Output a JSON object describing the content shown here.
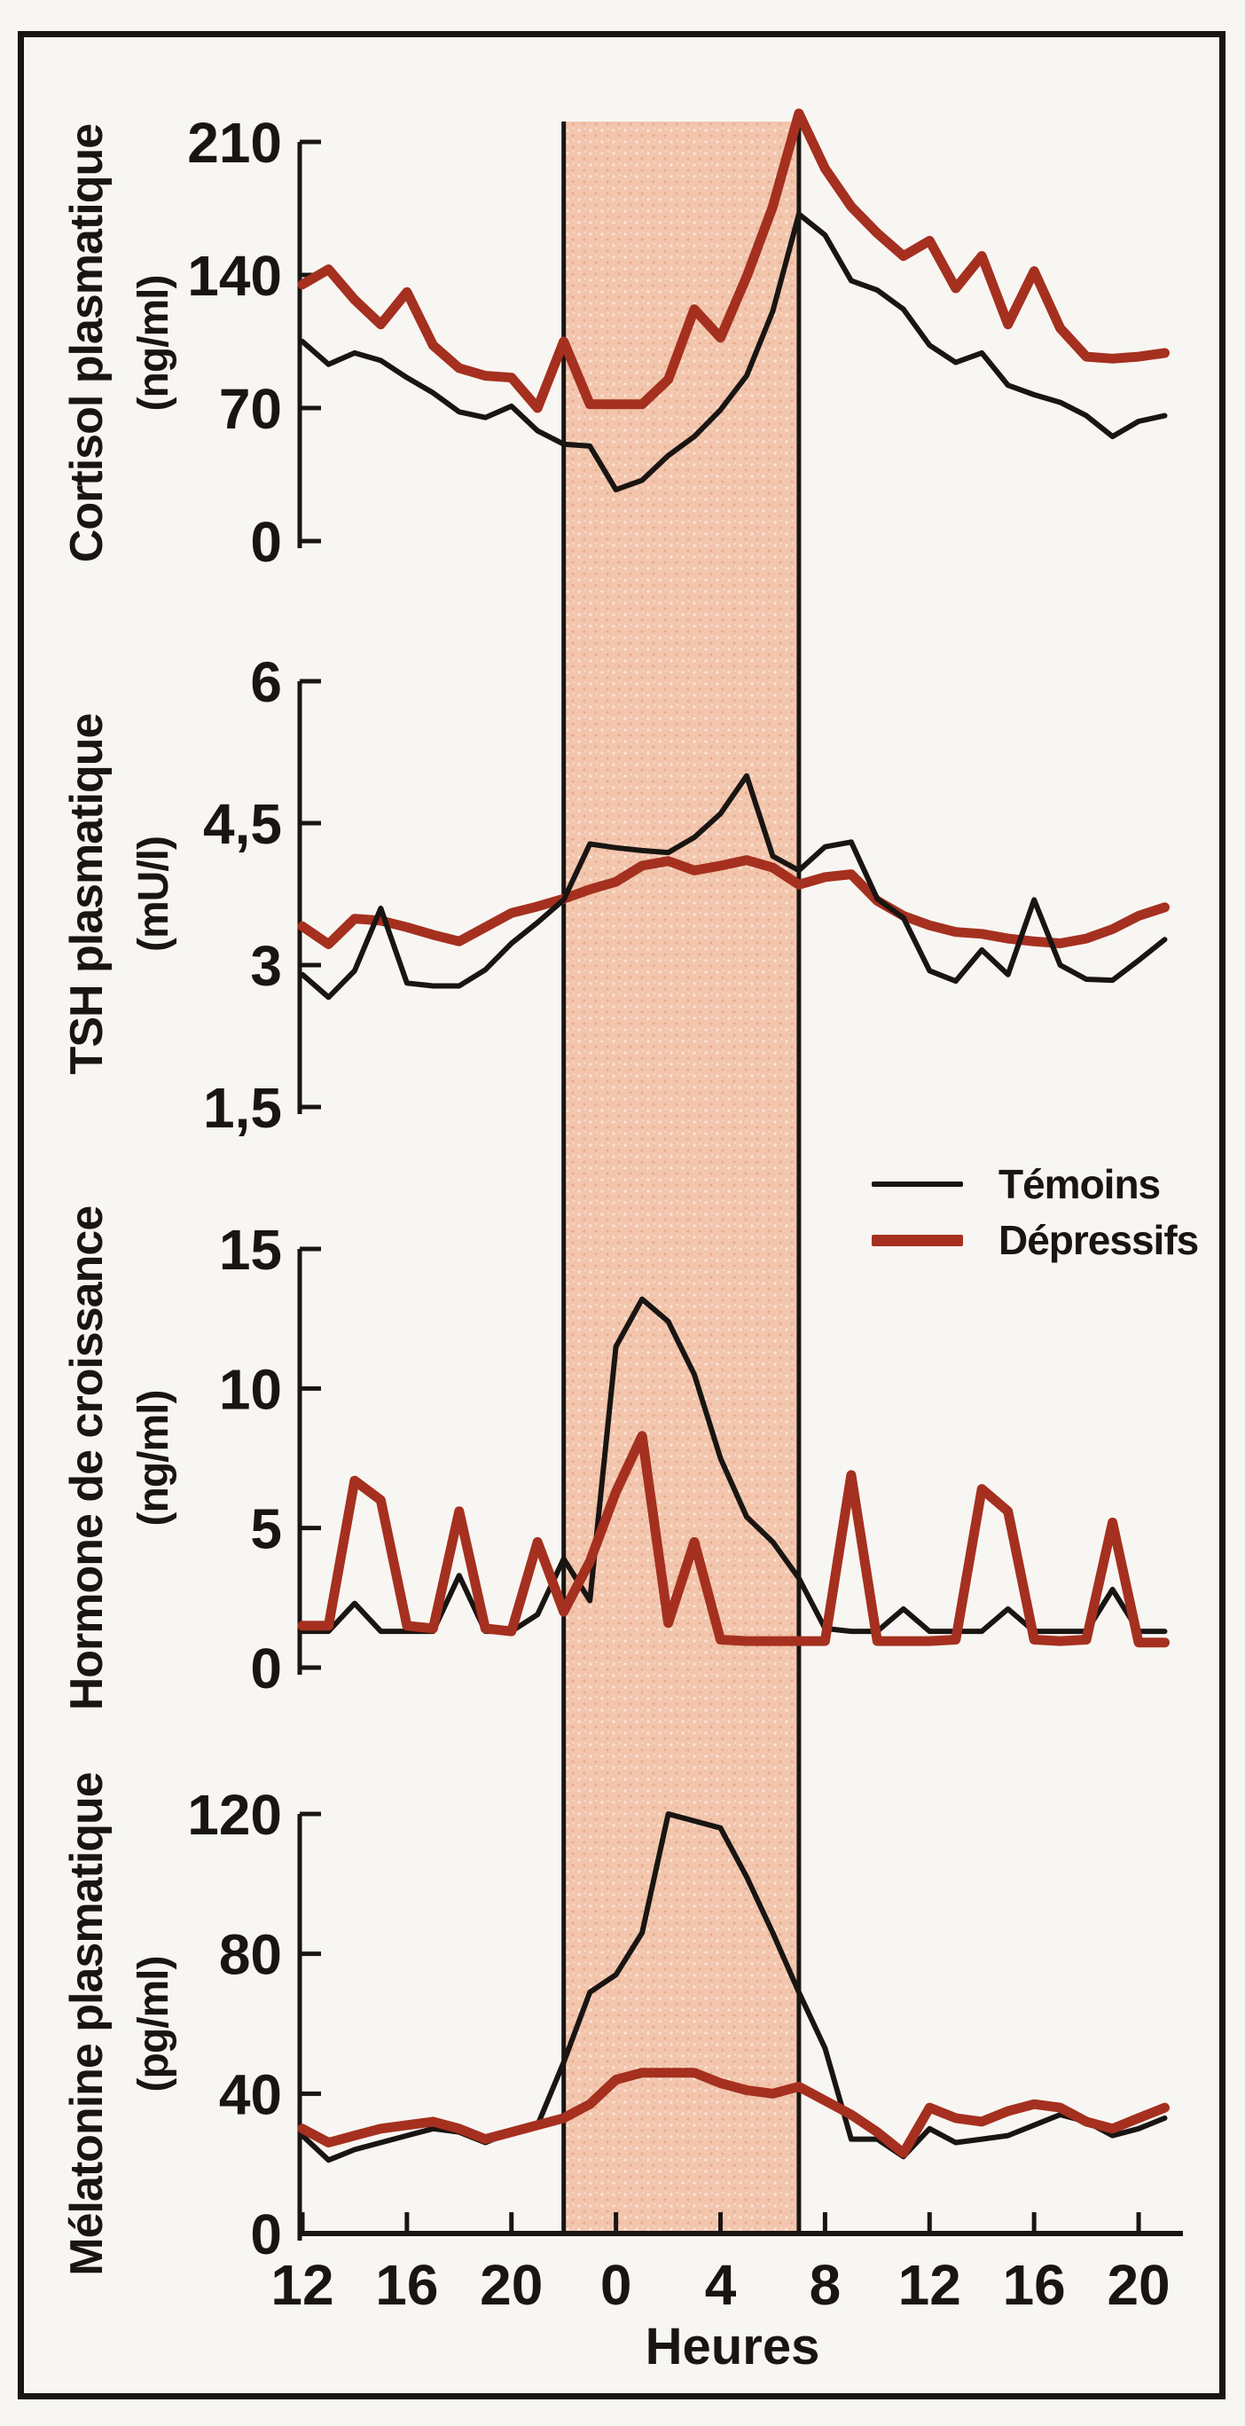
{
  "page": {
    "background": "#f8f6f2",
    "border_color": "#191512"
  },
  "legend": {
    "items": [
      {
        "label": "Témoins",
        "color": "#191512",
        "thickness": 6
      },
      {
        "label": "Dépressifs",
        "color": "#a5301f",
        "thickness": 13
      }
    ]
  },
  "x_axis": {
    "label": "Heures",
    "tick_labels": [
      "12",
      "16",
      "20",
      "0",
      "4",
      "8",
      "12",
      "16",
      "20"
    ],
    "tick_indices": [
      0,
      4,
      8,
      12,
      16,
      20,
      24,
      28,
      32
    ],
    "points_count": 34,
    "start_hour": 12
  },
  "night_band": {
    "from_index": 10,
    "to_index": 19,
    "from_hour": 22,
    "to_hour": 7,
    "fill": "#f2c5ac",
    "edge_color": "#191512"
  },
  "chart_data": [
    {
      "type": "line",
      "id": "cortisol",
      "title": "Cortisol plasmatique",
      "unit": "(ng/ml)",
      "ylim": [
        0,
        210
      ],
      "yticks": [
        0,
        70,
        140,
        210
      ],
      "ytick_labels": [
        "0",
        "70",
        "140",
        "210"
      ],
      "grid": false,
      "red_on_top": true,
      "series": [
        {
          "name": "Témoins",
          "values": [
            105,
            93,
            99,
            95,
            86,
            78,
            68,
            65,
            71,
            58,
            51,
            50,
            27,
            32,
            45,
            55,
            69,
            87,
            121,
            172,
            161,
            137,
            132,
            122,
            103,
            94,
            99,
            82,
            77,
            73,
            66,
            55,
            63,
            66
          ]
        },
        {
          "name": "Dépressifs",
          "values": [
            135,
            143,
            127,
            114,
            131,
            103,
            91,
            87,
            86,
            70,
            105,
            72,
            72,
            72,
            85,
            122,
            107,
            139,
            176,
            225,
            196,
            176,
            162,
            150,
            158,
            133,
            150,
            114,
            142,
            112,
            97,
            96,
            97,
            99
          ]
        }
      ]
    },
    {
      "type": "line",
      "id": "tsh",
      "title": "TSH plasmatique",
      "unit": "(mU/l)",
      "ylim": [
        1.5,
        6
      ],
      "yticks": [
        1.5,
        3,
        4.5,
        6
      ],
      "ytick_labels": [
        "1,5",
        "3",
        "4,5",
        "6"
      ],
      "grid": false,
      "red_on_top": false,
      "series": [
        {
          "name": "Témoins",
          "values": [
            2.9,
            2.66,
            2.94,
            3.6,
            2.81,
            2.78,
            2.78,
            2.95,
            3.23,
            3.45,
            3.69,
            4.28,
            4.24,
            4.21,
            4.19,
            4.35,
            4.6,
            5.0,
            4.15,
            4.0,
            4.25,
            4.3,
            3.7,
            3.5,
            2.94,
            2.83,
            3.16,
            2.9,
            3.69,
            3.0,
            2.85,
            2.84,
            3.05,
            3.27
          ]
        },
        {
          "name": "Dépressifs",
          "values": [
            3.41,
            3.22,
            3.49,
            3.47,
            3.4,
            3.32,
            3.25,
            3.4,
            3.55,
            3.62,
            3.7,
            3.8,
            3.88,
            4.05,
            4.1,
            4.0,
            4.05,
            4.11,
            4.03,
            3.85,
            3.93,
            3.96,
            3.68,
            3.52,
            3.42,
            3.35,
            3.33,
            3.28,
            3.25,
            3.23,
            3.28,
            3.38,
            3.52,
            3.61
          ]
        }
      ]
    },
    {
      "type": "line",
      "id": "hormone-croissance",
      "title": "Hormone de croissance",
      "unit": "(ng/ml)",
      "ylim": [
        0,
        15
      ],
      "yticks": [
        0,
        5,
        10,
        15
      ],
      "ytick_labels": [
        "0",
        "5",
        "10",
        "15"
      ],
      "grid": false,
      "red_on_top": true,
      "series": [
        {
          "name": "Témoins",
          "values": [
            1.3,
            1.3,
            2.3,
            1.3,
            1.3,
            1.3,
            3.3,
            1.3,
            1.3,
            1.9,
            3.9,
            2.4,
            11.5,
            13.2,
            12.4,
            10.5,
            7.5,
            5.4,
            4.5,
            3.2,
            1.4,
            1.3,
            1.3,
            2.1,
            1.3,
            1.3,
            1.3,
            2.1,
            1.3,
            1.3,
            1.3,
            2.8,
            1.3,
            1.3
          ]
        },
        {
          "name": "Dépressifs",
          "values": [
            1.5,
            1.5,
            6.7,
            6.0,
            1.5,
            1.4,
            5.6,
            1.4,
            1.3,
            4.5,
            2.0,
            3.8,
            6.3,
            8.3,
            1.6,
            4.5,
            1.0,
            0.95,
            0.95,
            0.95,
            0.95,
            6.9,
            0.95,
            0.95,
            0.95,
            1.0,
            6.4,
            5.6,
            1.0,
            0.95,
            1.0,
            5.2,
            0.9,
            0.9
          ]
        }
      ]
    },
    {
      "type": "line",
      "id": "melatonine",
      "title": "Mélatonine plasmatique",
      "unit": "(pg/ml)",
      "ylim": [
        0,
        120
      ],
      "yticks": [
        0,
        40,
        80,
        120
      ],
      "ytick_labels": [
        "0",
        "40",
        "80",
        "120"
      ],
      "grid": false,
      "red_on_top": true,
      "series": [
        {
          "name": "Témoins",
          "values": [
            28,
            21,
            24,
            26,
            28,
            30,
            29,
            26,
            29,
            31,
            49,
            69,
            74,
            86,
            120,
            118,
            116,
            102,
            86,
            69,
            53,
            27,
            27,
            22,
            30,
            26,
            27,
            28,
            31,
            34,
            32,
            28,
            30,
            33
          ]
        },
        {
          "name": "Dépressifs",
          "values": [
            30,
            26,
            28,
            30,
            31,
            32,
            30,
            27,
            29,
            31,
            33,
            37,
            44,
            46,
            46,
            46,
            43,
            41,
            40,
            42,
            38,
            34,
            29,
            23,
            36,
            33,
            32,
            35,
            37,
            36,
            32,
            30,
            33,
            36
          ]
        }
      ]
    }
  ]
}
